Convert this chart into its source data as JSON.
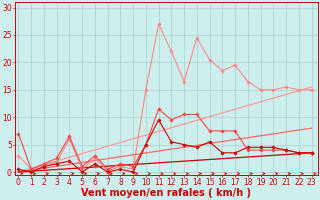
{
  "background_color": "#cceeed",
  "grid_color": "#aacccc",
  "xlabel": "Vent moyen/en rafales ( km/h )",
  "xlabel_color": "#cc0000",
  "xlabel_fontsize": 7,
  "yticks": [
    0,
    5,
    10,
    15,
    20,
    25,
    30
  ],
  "xticks": [
    0,
    1,
    2,
    3,
    4,
    5,
    6,
    7,
    8,
    9,
    10,
    11,
    12,
    13,
    14,
    15,
    16,
    17,
    18,
    19,
    20,
    21,
    22,
    23
  ],
  "tick_color": "#cc0000",
  "tick_fontsize": 5.5,
  "xlim": [
    -0.3,
    23.5
  ],
  "ylim": [
    -0.5,
    31
  ],
  "line1_x": [
    0,
    1,
    2,
    3,
    4,
    5,
    6,
    7,
    8,
    9,
    10,
    11,
    12,
    13,
    14,
    15,
    16,
    17,
    18,
    19,
    20,
    21,
    22,
    23
  ],
  "line1_y": [
    3.0,
    0.5,
    1.2,
    1.8,
    6.0,
    0.5,
    2.5,
    0.2,
    1.0,
    0.5,
    15.0,
    27.0,
    22.0,
    16.5,
    24.5,
    20.5,
    18.5,
    19.5,
    16.5,
    15.0,
    15.0,
    15.5,
    15.0,
    15.0
  ],
  "line1_color": "#ff8888",
  "line1_marker": "D",
  "line1_markersize": 1.8,
  "line1_linewidth": 0.8,
  "line2_x": [
    0,
    1,
    2,
    3,
    4,
    5,
    6,
    7,
    8,
    9,
    10,
    11,
    12,
    13,
    14,
    15,
    16,
    17,
    18,
    19,
    20,
    21,
    22,
    23
  ],
  "line2_y": [
    7.0,
    0.5,
    1.5,
    2.5,
    6.5,
    1.0,
    3.0,
    0.5,
    1.5,
    1.0,
    5.0,
    11.5,
    9.5,
    10.5,
    10.5,
    7.5,
    7.5,
    7.5,
    4.0,
    4.0,
    4.0,
    4.0,
    3.5,
    3.5
  ],
  "line2_color": "#ff4444",
  "line2_marker": "D",
  "line2_markersize": 1.8,
  "line2_linewidth": 0.8,
  "line3_x": [
    0,
    1,
    2,
    3,
    4,
    5,
    6,
    7,
    8,
    9,
    10,
    11,
    12,
    13,
    14,
    15,
    16,
    17,
    18,
    19,
    20,
    21,
    22,
    23
  ],
  "line3_y": [
    0.5,
    0.0,
    1.0,
    1.5,
    2.0,
    0.0,
    1.5,
    0.0,
    0.5,
    0.0,
    5.0,
    9.5,
    5.5,
    5.0,
    4.5,
    5.5,
    3.5,
    3.5,
    4.5,
    4.5,
    4.5,
    4.0,
    3.5,
    3.5
  ],
  "line3_color": "#cc0000",
  "line3_marker": "D",
  "line3_markersize": 1.8,
  "line3_linewidth": 0.8,
  "trend1_x": [
    0,
    23
  ],
  "trend1_y": [
    0.0,
    15.5
  ],
  "trend1_color": "#ff9999",
  "trend1_linewidth": 0.9,
  "trend2_x": [
    0,
    23
  ],
  "trend2_y": [
    0.0,
    8.0
  ],
  "trend2_color": "#ff6666",
  "trend2_linewidth": 0.9,
  "trend3_x": [
    0,
    23
  ],
  "trend3_y": [
    0.0,
    3.5
  ],
  "trend3_color": "#cc0000",
  "trend3_linewidth": 0.9,
  "arrow_color": "#cc0000",
  "spine_color": "#cc0000"
}
